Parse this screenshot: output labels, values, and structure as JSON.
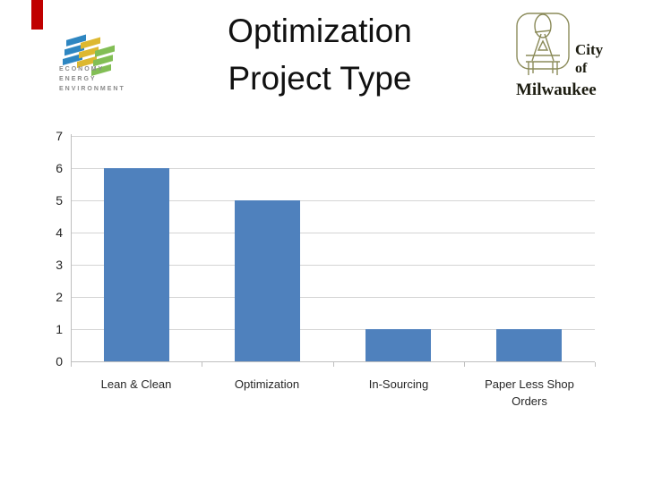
{
  "slide": {
    "background": "#ffffff"
  },
  "red_marker": {
    "color": "#C00000"
  },
  "title": {
    "line1": "Optimization",
    "line2": "Project Type"
  },
  "e3_logo": {
    "text_lines": [
      "ECONOMY",
      "ENERGY",
      "ENVIRONMENT"
    ],
    "text_color": "#8a8a8a",
    "colors": {
      "blue": "#2E86C1",
      "gold": "#DDB830",
      "green": "#82BE55"
    }
  },
  "milwaukee_logo": {
    "line1": "City",
    "line2": "of",
    "line3": "Milwaukee",
    "outline_color": "#8b8b5a",
    "text_color": "#1c1c10"
  },
  "chart_data": {
    "type": "bar",
    "categories": [
      "Lean & Clean",
      "Optimization",
      "In-Sourcing",
      "Paper Less Shop Orders"
    ],
    "values": [
      6,
      5,
      1,
      1
    ],
    "title": "Optimization Project Type",
    "xlabel": "",
    "ylabel": "",
    "ylim": [
      0,
      7
    ],
    "ytick_step": 1,
    "grid": true,
    "legend": false,
    "bar_color": "#4F81BD",
    "gridline_color": "#d4d4d4",
    "axis_color": "#bfbfbf",
    "label_color": "#262626"
  }
}
